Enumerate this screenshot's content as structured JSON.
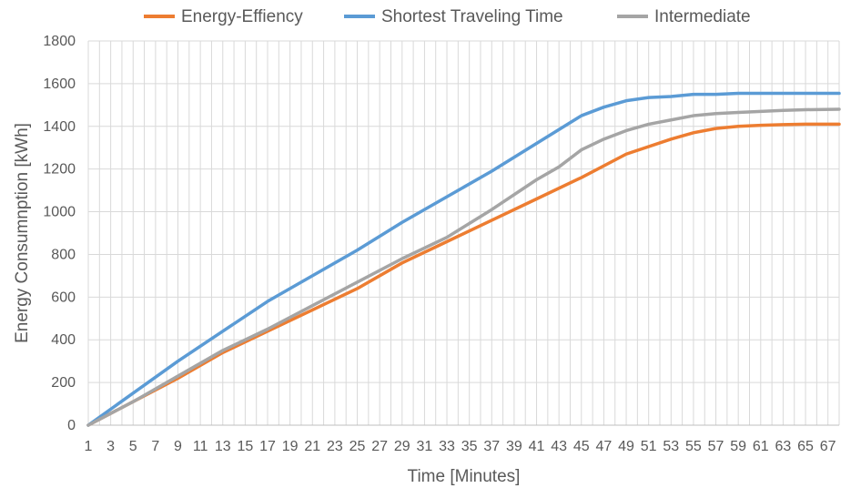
{
  "chart_data": {
    "type": "line",
    "title": "",
    "xlabel": "Time [Minutes]",
    "ylabel": "Energy Consumnption [kWh]",
    "xlim": [
      1,
      68
    ],
    "ylim": [
      0,
      1800
    ],
    "y_ticks": [
      0,
      200,
      400,
      600,
      800,
      1000,
      1200,
      1400,
      1600,
      1800
    ],
    "x_tick_labels": [
      1,
      3,
      5,
      7,
      9,
      11,
      13,
      15,
      17,
      19,
      21,
      23,
      25,
      27,
      29,
      31,
      33,
      35,
      37,
      39,
      41,
      43,
      45,
      47,
      49,
      51,
      53,
      55,
      57,
      59,
      61,
      63,
      65,
      67
    ],
    "grid": true,
    "legend_position": "top",
    "series": [
      {
        "name": "Energy-Effiency",
        "color": "#ED7D31",
        "x": [
          1,
          5,
          9,
          13,
          17,
          21,
          25,
          29,
          33,
          37,
          41,
          45,
          49,
          53,
          55,
          57,
          59,
          61,
          63,
          65,
          68
        ],
        "y": [
          0,
          110,
          220,
          340,
          440,
          540,
          640,
          760,
          860,
          960,
          1060,
          1160,
          1270,
          1340,
          1370,
          1390,
          1400,
          1405,
          1408,
          1410,
          1410
        ]
      },
      {
        "name": "Shortest Traveling Time",
        "color": "#5B9BD5",
        "x": [
          1,
          5,
          9,
          13,
          17,
          21,
          25,
          29,
          33,
          37,
          41,
          45,
          47,
          49,
          51,
          53,
          55,
          57,
          59,
          61,
          63,
          65,
          68
        ],
        "y": [
          0,
          150,
          300,
          440,
          580,
          700,
          820,
          950,
          1070,
          1190,
          1320,
          1450,
          1490,
          1520,
          1535,
          1540,
          1550,
          1550,
          1555,
          1555,
          1555,
          1555,
          1555
        ]
      },
      {
        "name": "Intermediate",
        "color": "#A5A5A5",
        "x": [
          1,
          5,
          9,
          13,
          17,
          21,
          25,
          29,
          33,
          37,
          41,
          43,
          45,
          47,
          49,
          51,
          53,
          55,
          57,
          59,
          61,
          63,
          65,
          68
        ],
        "y": [
          0,
          110,
          230,
          350,
          450,
          560,
          670,
          780,
          880,
          1010,
          1150,
          1210,
          1290,
          1340,
          1380,
          1410,
          1430,
          1450,
          1460,
          1465,
          1470,
          1475,
          1478,
          1480
        ]
      }
    ]
  }
}
